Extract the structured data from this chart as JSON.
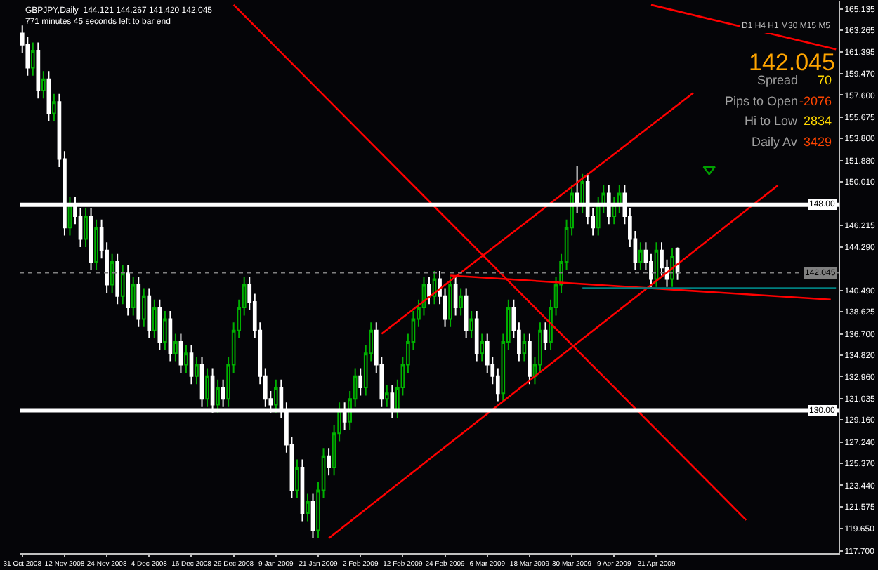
{
  "chart_data": {
    "type": "candlestick",
    "title": "GBPJPY,Daily  144.121 144.267 141.420 142.045",
    "subtitle": "771 minutes 45 seconds left to bar end",
    "categories": [
      "31 Oct 2008",
      null,
      null,
      null,
      null,
      null,
      null,
      null,
      "12 Nov 2008",
      null,
      null,
      null,
      null,
      null,
      null,
      null,
      "24 Nov 2008",
      null,
      null,
      null,
      null,
      null,
      null,
      null,
      "4 Dec 2008",
      null,
      null,
      null,
      null,
      null,
      null,
      null,
      "16 Dec 2008",
      null,
      null,
      null,
      null,
      null,
      null,
      null,
      "29 Dec 2008",
      null,
      null,
      null,
      null,
      null,
      null,
      null,
      "9 Jan 2009",
      null,
      null,
      null,
      null,
      null,
      null,
      null,
      "21 Jan 2009",
      null,
      null,
      null,
      null,
      null,
      null,
      null,
      "2 Feb 2009",
      null,
      null,
      null,
      null,
      null,
      null,
      null,
      "12 Feb 2009",
      null,
      null,
      null,
      null,
      null,
      null,
      null,
      "24 Feb 2009",
      null,
      null,
      null,
      null,
      null,
      null,
      null,
      "6 Mar 2009",
      null,
      null,
      null,
      null,
      null,
      null,
      null,
      "18 Mar 2009",
      null,
      null,
      null,
      null,
      null,
      null,
      null,
      "30 Mar 2009",
      null,
      null,
      null,
      null,
      null,
      null,
      null,
      "9 Apr 2009",
      null,
      null,
      null,
      null,
      null,
      null,
      null,
      "21 Apr 2009",
      null,
      null,
      null,
      null,
      null,
      null,
      null,
      null,
      null,
      null,
      null,
      null,
      null,
      null,
      null,
      null,
      null,
      null,
      null,
      null,
      null,
      null,
      null,
      null,
      null,
      null,
      null,
      null,
      null,
      null,
      null,
      null,
      null,
      null
    ],
    "ohlc": [
      [
        163,
        163.7,
        161.3,
        162
      ],
      [
        162,
        162.7,
        159.3,
        160
      ],
      [
        160,
        162.2,
        159.3,
        161.5
      ],
      [
        161.5,
        162.2,
        157.3,
        158
      ],
      [
        158,
        159.7,
        157.3,
        159
      ],
      [
        159,
        159.7,
        155.3,
        156
      ],
      [
        156,
        157.7,
        155.3,
        157
      ],
      [
        157,
        157.7,
        151.3,
        152
      ],
      [
        152,
        152.7,
        145.3,
        146
      ],
      [
        146,
        148.7,
        145.3,
        148
      ],
      [
        148,
        148.7,
        146.3,
        147
      ],
      [
        147,
        147.7,
        144.3,
        145
      ],
      [
        145,
        147.7,
        144.3,
        147
      ],
      [
        147,
        147.7,
        142.3,
        143
      ],
      [
        143,
        146.7,
        142.3,
        146
      ],
      [
        146,
        146.7,
        143.3,
        144
      ],
      [
        144,
        144.7,
        140.3,
        141
      ],
      [
        141,
        143.7,
        140.3,
        143
      ],
      [
        143,
        143.7,
        139.3,
        140
      ],
      [
        140,
        142.7,
        139.3,
        142
      ],
      [
        142,
        142.7,
        138.3,
        139
      ],
      [
        139,
        141.7,
        138.3,
        141
      ],
      [
        141,
        141.7,
        137.3,
        138
      ],
      [
        138,
        140.7,
        137.3,
        140
      ],
      [
        140,
        140.7,
        136.3,
        137
      ],
      [
        137,
        139.7,
        136.3,
        139
      ],
      [
        139,
        139.7,
        135.3,
        136
      ],
      [
        136,
        138.7,
        135.3,
        138
      ],
      [
        138,
        138.7,
        134.3,
        135
      ],
      [
        135,
        136.7,
        134.3,
        136
      ],
      [
        136,
        136.7,
        133.3,
        134
      ],
      [
        134,
        135.7,
        133.3,
        135
      ],
      [
        135,
        135.7,
        132.3,
        133
      ],
      [
        133,
        134.7,
        132.3,
        134
      ],
      [
        134,
        134.7,
        130.3,
        131
      ],
      [
        131,
        133.7,
        130.3,
        133
      ],
      [
        133,
        133.7,
        129.8,
        130.5
      ],
      [
        130.5,
        132.7,
        129.8,
        132
      ],
      [
        132,
        132.7,
        130.3,
        131
      ],
      [
        131,
        134.7,
        130.3,
        134
      ],
      [
        134,
        137.7,
        133.3,
        137
      ],
      [
        137,
        139.7,
        136.3,
        139
      ],
      [
        139,
        141.7,
        138.3,
        141
      ],
      [
        141,
        141.7,
        138.8,
        139.5
      ],
      [
        139.5,
        140.2,
        136.3,
        137
      ],
      [
        137,
        137.7,
        132.3,
        133
      ],
      [
        133,
        133.7,
        130.3,
        131
      ],
      [
        131,
        131.7,
        129.8,
        130.5
      ],
      [
        130.5,
        132.7,
        129.8,
        132
      ],
      [
        132,
        132.7,
        129.3,
        130
      ],
      [
        130,
        130.7,
        126.3,
        127
      ],
      [
        127,
        127.7,
        122.3,
        123
      ],
      [
        123,
        125.7,
        122.3,
        125
      ],
      [
        125,
        125.7,
        120.3,
        121
      ],
      [
        121,
        122.7,
        120.3,
        122
      ],
      [
        122,
        122.7,
        118.8,
        119.5
      ],
      [
        119.5,
        123.7,
        118.8,
        123
      ],
      [
        123,
        126.7,
        122.3,
        126
      ],
      [
        126,
        126.7,
        124.3,
        125
      ],
      [
        125,
        128.7,
        124.3,
        128
      ],
      [
        128,
        130.7,
        127.3,
        130
      ],
      [
        130,
        130.7,
        128.3,
        129
      ],
      [
        129,
        131.7,
        128.3,
        131
      ],
      [
        131,
        133.7,
        130.3,
        133
      ],
      [
        133,
        133.7,
        131.3,
        132
      ],
      [
        132,
        135.7,
        131.3,
        135
      ],
      [
        135,
        137.7,
        134.3,
        137
      ],
      [
        137,
        137.7,
        133.3,
        134
      ],
      [
        134,
        134.7,
        130.3,
        131
      ],
      [
        131,
        132.2,
        130.3,
        131.5
      ],
      [
        131.5,
        132.2,
        129.3,
        130
      ],
      [
        130,
        132.7,
        129.3,
        132
      ],
      [
        132,
        134.7,
        131.3,
        134
      ],
      [
        134,
        136.7,
        133.3,
        136
      ],
      [
        136,
        138.7,
        135.3,
        138
      ],
      [
        138,
        139.7,
        137.3,
        139
      ],
      [
        139,
        141.7,
        138.3,
        141
      ],
      [
        141,
        141.7,
        139.3,
        140
      ],
      [
        140,
        142.2,
        139.3,
        141.5
      ],
      [
        141.5,
        142.2,
        139.3,
        140
      ],
      [
        140,
        140.7,
        137.3,
        138
      ],
      [
        138,
        141.7,
        137.3,
        141
      ],
      [
        141,
        141.7,
        138.3,
        139
      ],
      [
        139,
        140.7,
        138.3,
        140
      ],
      [
        140,
        140.7,
        136.3,
        137
      ],
      [
        137,
        138.7,
        136.3,
        138
      ],
      [
        138,
        138.7,
        134.3,
        135
      ],
      [
        135,
        136.7,
        134.3,
        136
      ],
      [
        136,
        136.7,
        133.3,
        134
      ],
      [
        134,
        134.7,
        132.3,
        133
      ],
      [
        133,
        133.7,
        130.8,
        131.5
      ],
      [
        131.5,
        136.7,
        130.8,
        136
      ],
      [
        136,
        139.7,
        135.3,
        139
      ],
      [
        139,
        139.7,
        136.3,
        137
      ],
      [
        137,
        137.7,
        134.3,
        135
      ],
      [
        135,
        136.7,
        134.3,
        136
      ],
      [
        136,
        136.7,
        132.3,
        133
      ],
      [
        133,
        134.7,
        132.3,
        134
      ],
      [
        134,
        137.7,
        133.3,
        137
      ],
      [
        137,
        137.7,
        135.3,
        136
      ],
      [
        136,
        139.7,
        135.3,
        139
      ],
      [
        139,
        141.7,
        138.3,
        141
      ],
      [
        141,
        143.7,
        140.3,
        143
      ],
      [
        143,
        146.7,
        142.3,
        146
      ],
      [
        146,
        149.7,
        145.3,
        149
      ],
      [
        149,
        151.4,
        147.3,
        148
      ],
      [
        148,
        150.7,
        147.3,
        150
      ],
      [
        150,
        150.7,
        146.3,
        147
      ],
      [
        147,
        147.7,
        145.3,
        146
      ],
      [
        146,
        148.7,
        145.3,
        148
      ],
      [
        148,
        149.7,
        147.3,
        149
      ],
      [
        149,
        149.7,
        146.3,
        147
      ],
      [
        147,
        148.7,
        146.3,
        148
      ],
      [
        148,
        149.7,
        147.3,
        149
      ],
      [
        149,
        149.7,
        146.3,
        147
      ],
      [
        147,
        147.7,
        144.3,
        145
      ],
      [
        145,
        145.7,
        142.3,
        143
      ],
      [
        143,
        144.7,
        142.3,
        144
      ],
      [
        144,
        144.7,
        142.3,
        143
      ],
      [
        143,
        143.7,
        140.8,
        141.5
      ],
      [
        141.5,
        144.7,
        140.8,
        144
      ],
      [
        144,
        144.7,
        141.8,
        142.5
      ],
      [
        142.5,
        143.2,
        140.8,
        141.5
      ],
      [
        141.5,
        144.2,
        140.8,
        143.5
      ],
      [
        144.121,
        144.267,
        141.42,
        142.045
      ],
      null,
      null,
      null,
      null,
      null,
      null,
      null,
      null,
      null,
      null,
      null,
      null,
      null,
      null,
      null,
      null,
      null,
      null,
      null,
      null,
      null,
      null,
      null,
      null,
      null,
      null,
      null,
      null,
      null,
      null
    ],
    "colors": [
      "#ffffff",
      "#ffffff",
      "#00b000",
      "#ffffff",
      "#00b000",
      "#ffffff",
      "#00b000",
      "#ffffff",
      "#ffffff",
      "#00b000",
      "#ffffff",
      "#ffffff",
      "#00b000",
      "#ffffff",
      "#00b000",
      "#ffffff",
      "#ffffff",
      "#00b000",
      "#ffffff",
      "#00b000",
      "#ffffff",
      "#00b000",
      "#ffffff",
      "#00b000",
      "#ffffff",
      "#00b000",
      "#ffffff",
      "#00b000",
      "#ffffff",
      "#00b000",
      "#ffffff",
      "#00b000",
      "#ffffff",
      "#00b000",
      "#ffffff",
      "#00b000",
      "#ffffff",
      "#00b000",
      "#ffffff",
      "#00b000",
      "#00b000",
      "#00b000",
      "#00b000",
      "#ffffff",
      "#ffffff",
      "#ffffff",
      "#ffffff",
      "#ffffff",
      "#00b000",
      "#ffffff",
      "#ffffff",
      "#ffffff",
      "#00b000",
      "#ffffff",
      "#00b000",
      "#ffffff",
      "#00b000",
      "#00b000",
      "#ffffff",
      "#00b000",
      "#00b000",
      "#ffffff",
      "#00b000",
      "#00b000",
      "#ffffff",
      "#00b000",
      "#00b000",
      "#ffffff",
      "#ffffff",
      "#00b000",
      "#ffffff",
      "#00b000",
      "#00b000",
      "#00b000",
      "#00b000",
      "#00b000",
      "#00b000",
      "#ffffff",
      "#00b000",
      "#ffffff",
      "#ffffff",
      "#00b000",
      "#ffffff",
      "#00b000",
      "#ffffff",
      "#00b000",
      "#ffffff",
      "#00b000",
      "#ffffff",
      "#ffffff",
      "#ffffff",
      "#00b000",
      "#00b000",
      "#ffffff",
      "#ffffff",
      "#00b000",
      "#ffffff",
      "#00b000",
      "#00b000",
      "#ffffff",
      "#00b000",
      "#00b000",
      "#00b000",
      "#00b000",
      "#00b000",
      "#ffffff",
      "#00b000",
      "#ffffff",
      "#ffffff",
      "#00b000",
      "#00b000",
      "#ffffff",
      "#00b000",
      "#00b000",
      "#ffffff",
      "#ffffff",
      "#ffffff",
      "#00b000",
      "#ffffff",
      "#ffffff",
      "#00b000",
      "#ffffff",
      "#ffffff",
      "#00b000",
      "#ffffff",
      null,
      null,
      null,
      null,
      null,
      null,
      null,
      null,
      null,
      null,
      null,
      null,
      null,
      null,
      null,
      null,
      null,
      null,
      null,
      null,
      null,
      null,
      null,
      null,
      null,
      null,
      null,
      null,
      null,
      null
    ],
    "series": [
      {
        "type": "line",
        "color": "#ff0000",
        "values": [
          null,
          null,
          null,
          null,
          null,
          null,
          null,
          null,
          null,
          null,
          null,
          null,
          null,
          null,
          null,
          null,
          null,
          null,
          null,
          null,
          null,
          null,
          null,
          null,
          null,
          null,
          null,
          null,
          null,
          null,
          null,
          null,
          null,
          null,
          null,
          null,
          null,
          null,
          null,
          null,
          165.5,
          null,
          null,
          null,
          null,
          null,
          null,
          null,
          null,
          null,
          null,
          null,
          null,
          null,
          null,
          null,
          null,
          null,
          null,
          null,
          null,
          null,
          null,
          null,
          null,
          null,
          null,
          null,
          null,
          null,
          null,
          null,
          null,
          null,
          null,
          null,
          null,
          null,
          null,
          null,
          null,
          null,
          null,
          null,
          null,
          null,
          null,
          null,
          null,
          null,
          null,
          null,
          null,
          null,
          null,
          null,
          null,
          null,
          null,
          null,
          null,
          null,
          null,
          null,
          null,
          null,
          null,
          null,
          null,
          null,
          null,
          null,
          null,
          null,
          null,
          null,
          null,
          null,
          null,
          null,
          null,
          null,
          null,
          null,
          null,
          null,
          null,
          null,
          null,
          null,
          null,
          null,
          null,
          null,
          null,
          null,
          null,
          120.4,
          null,
          null,
          null,
          null,
          null,
          null,
          null,
          null,
          null,
          null,
          null,
          null,
          null,
          null,
          null,
          null,
          null
        ]
      },
      {
        "type": "line",
        "color": "#ff0000",
        "values": [
          null,
          null,
          null,
          null,
          null,
          null,
          null,
          null,
          null,
          null,
          null,
          null,
          null,
          null,
          null,
          null,
          null,
          null,
          null,
          null,
          null,
          null,
          null,
          null,
          null,
          null,
          null,
          null,
          null,
          null,
          null,
          null,
          null,
          null,
          null,
          null,
          null,
          null,
          null,
          null,
          null,
          null,
          null,
          null,
          null,
          null,
          null,
          null,
          null,
          null,
          null,
          null,
          null,
          null,
          null,
          null,
          null,
          null,
          118.8,
          null,
          null,
          null,
          null,
          null,
          null,
          null,
          null,
          null,
          null,
          null,
          null,
          null,
          null,
          null,
          null,
          null,
          null,
          null,
          null,
          null,
          null,
          null,
          null,
          null,
          null,
          null,
          null,
          null,
          null,
          null,
          null,
          null,
          null,
          null,
          null,
          null,
          null,
          null,
          null,
          null,
          null,
          null,
          null,
          null,
          null,
          null,
          null,
          null,
          null,
          null,
          null,
          null,
          null,
          null,
          null,
          null,
          null,
          null,
          null,
          null,
          null,
          null,
          null,
          null,
          null,
          null,
          null,
          null,
          null,
          null,
          null,
          null,
          null,
          null,
          null,
          null,
          null,
          null,
          null,
          null,
          null,
          null,
          null,
          149.7,
          null,
          null,
          null,
          null,
          null,
          null,
          null,
          null,
          null,
          null,
          null
        ]
      },
      {
        "type": "line",
        "color": "#ff0000",
        "values": [
          null,
          null,
          null,
          null,
          null,
          null,
          null,
          null,
          null,
          null,
          null,
          null,
          null,
          null,
          null,
          null,
          null,
          null,
          null,
          null,
          null,
          null,
          null,
          null,
          null,
          null,
          null,
          null,
          null,
          null,
          null,
          null,
          null,
          null,
          null,
          null,
          null,
          null,
          null,
          null,
          null,
          null,
          null,
          null,
          null,
          null,
          null,
          null,
          null,
          null,
          null,
          null,
          null,
          null,
          null,
          null,
          null,
          null,
          null,
          null,
          null,
          null,
          null,
          null,
          null,
          null,
          null,
          null,
          136.7,
          null,
          null,
          null,
          null,
          null,
          null,
          null,
          null,
          null,
          null,
          null,
          null,
          null,
          null,
          null,
          null,
          null,
          null,
          null,
          null,
          null,
          null,
          null,
          null,
          null,
          null,
          null,
          null,
          null,
          null,
          null,
          null,
          null,
          null,
          null,
          null,
          null,
          null,
          null,
          null,
          null,
          null,
          null,
          null,
          null,
          null,
          null,
          null,
          null,
          null,
          null,
          null,
          null,
          null,
          null,
          null,
          null,
          null,
          157.8,
          null,
          null,
          null,
          null,
          null,
          null,
          null,
          null,
          null,
          null,
          null,
          null,
          null,
          null,
          null,
          null,
          null,
          null,
          null,
          null,
          null,
          null,
          null,
          null,
          null,
          null,
          null
        ]
      },
      {
        "type": "line",
        "color": "#ff0000",
        "values": [
          null,
          null,
          null,
          null,
          null,
          null,
          null,
          null,
          null,
          null,
          null,
          null,
          null,
          null,
          null,
          null,
          null,
          null,
          null,
          null,
          null,
          null,
          null,
          null,
          null,
          null,
          null,
          null,
          null,
          null,
          null,
          null,
          null,
          null,
          null,
          null,
          null,
          null,
          null,
          null,
          null,
          null,
          null,
          null,
          null,
          null,
          null,
          null,
          null,
          null,
          null,
          null,
          null,
          null,
          null,
          null,
          null,
          null,
          null,
          null,
          null,
          null,
          null,
          null,
          null,
          null,
          null,
          null,
          null,
          null,
          null,
          null,
          null,
          null,
          null,
          null,
          null,
          null,
          null,
          null,
          null,
          null,
          null,
          null,
          null,
          null,
          null,
          null,
          null,
          null,
          null,
          null,
          null,
          null,
          null,
          null,
          null,
          null,
          null,
          null,
          null,
          null,
          null,
          null,
          null,
          null,
          null,
          null,
          null,
          null,
          null,
          null,
          null,
          null,
          null,
          null,
          null,
          null,
          null,
          165.5,
          null,
          null,
          null,
          null,
          null,
          null,
          null,
          null,
          null,
          null,
          null,
          null,
          null,
          null,
          null,
          null,
          null,
          null,
          null,
          null,
          null,
          null,
          null,
          null,
          null,
          null,
          null,
          null,
          null,
          null,
          null,
          null,
          null,
          null,
          161.6
        ]
      },
      {
        "type": "line",
        "color": "#ff0000",
        "values": [
          null,
          null,
          null,
          null,
          null,
          null,
          null,
          null,
          null,
          null,
          null,
          null,
          null,
          null,
          null,
          null,
          null,
          null,
          null,
          null,
          null,
          null,
          null,
          null,
          null,
          null,
          null,
          null,
          null,
          null,
          null,
          null,
          null,
          null,
          null,
          null,
          null,
          null,
          null,
          null,
          null,
          null,
          null,
          null,
          null,
          null,
          null,
          null,
          null,
          null,
          null,
          null,
          null,
          null,
          null,
          null,
          null,
          null,
          null,
          null,
          null,
          null,
          null,
          null,
          null,
          null,
          null,
          null,
          null,
          null,
          null,
          null,
          null,
          null,
          null,
          null,
          null,
          null,
          null,
          null,
          null,
          141.8,
          null,
          null,
          null,
          null,
          null,
          null,
          null,
          null,
          null,
          null,
          null,
          null,
          null,
          null,
          null,
          null,
          null,
          null,
          null,
          null,
          null,
          null,
          null,
          null,
          null,
          null,
          null,
          null,
          null,
          null,
          null,
          null,
          null,
          null,
          null,
          null,
          null,
          null,
          null,
          null,
          null,
          null,
          null,
          null,
          null,
          null,
          null,
          null,
          null,
          null,
          null,
          null,
          null,
          null,
          null,
          null,
          null,
          null,
          null,
          null,
          null,
          null,
          null,
          null,
          null,
          null,
          null,
          null,
          null,
          null,
          null,
          139.7,
          null
        ]
      },
      {
        "type": "line",
        "color": "#008080",
        "values": [
          null,
          null,
          null,
          null,
          null,
          null,
          null,
          null,
          null,
          null,
          null,
          null,
          null,
          null,
          null,
          null,
          null,
          null,
          null,
          null,
          null,
          null,
          null,
          null,
          null,
          null,
          null,
          null,
          null,
          null,
          null,
          null,
          null,
          null,
          null,
          null,
          null,
          null,
          null,
          null,
          null,
          null,
          null,
          null,
          null,
          null,
          null,
          null,
          null,
          null,
          null,
          null,
          null,
          null,
          null,
          null,
          null,
          null,
          null,
          null,
          null,
          null,
          null,
          null,
          null,
          null,
          null,
          null,
          null,
          null,
          null,
          null,
          null,
          null,
          null,
          null,
          null,
          null,
          null,
          null,
          null,
          null,
          null,
          null,
          null,
          null,
          null,
          null,
          null,
          null,
          null,
          null,
          null,
          null,
          null,
          null,
          null,
          null,
          null,
          null,
          null,
          null,
          null,
          null,
          null,
          null,
          140.7,
          null,
          null,
          null,
          null,
          null,
          null,
          null,
          null,
          null,
          null,
          null,
          null,
          null,
          null,
          null,
          null,
          null,
          null,
          null,
          null,
          null,
          null,
          null,
          null,
          null,
          null,
          null,
          null,
          null,
          null,
          null,
          null,
          null,
          null,
          null,
          null,
          null,
          null,
          null,
          null,
          null,
          null,
          null,
          null,
          null,
          null,
          null,
          140.7
        ]
      },
      {
        "type": "scatter",
        "color": "#00a000",
        "marker": "triangle",
        "values": [
          null,
          null,
          null,
          null,
          null,
          null,
          null,
          null,
          null,
          null,
          null,
          null,
          null,
          null,
          null,
          null,
          null,
          null,
          null,
          null,
          null,
          null,
          null,
          null,
          null,
          null,
          null,
          null,
          null,
          null,
          null,
          null,
          null,
          null,
          null,
          null,
          null,
          null,
          null,
          null,
          null,
          null,
          null,
          null,
          null,
          null,
          null,
          null,
          null,
          null,
          null,
          null,
          null,
          null,
          null,
          null,
          null,
          null,
          null,
          null,
          null,
          null,
          null,
          null,
          null,
          null,
          null,
          null,
          null,
          null,
          null,
          null,
          null,
          null,
          null,
          null,
          null,
          null,
          null,
          null,
          null,
          null,
          null,
          null,
          null,
          null,
          null,
          null,
          null,
          null,
          null,
          null,
          null,
          null,
          null,
          null,
          null,
          null,
          null,
          null,
          null,
          null,
          null,
          null,
          null,
          null,
          null,
          null,
          null,
          null,
          null,
          null,
          null,
          null,
          null,
          null,
          null,
          null,
          null,
          null,
          null,
          null,
          null,
          null,
          null,
          null,
          null,
          null,
          null,
          null,
          151.1,
          null,
          null,
          null,
          null,
          null,
          null,
          null,
          null,
          null,
          null,
          null,
          null,
          null,
          null,
          null,
          null,
          null,
          null,
          null,
          null,
          null,
          null,
          null,
          null
        ]
      }
    ],
    "ylim": [
      117.5,
      165.8
    ],
    "yticks": [
      {
        "value": 117.7,
        "label": "117.700"
      },
      {
        "value": 119.65,
        "label": "119.650"
      },
      {
        "value": 121.575,
        "label": "121.575"
      },
      {
        "value": 123.44,
        "label": "123.440"
      },
      {
        "value": 125.37,
        "label": "125.370"
      },
      {
        "value": 127.24,
        "label": "127.240"
      },
      {
        "value": 129.16,
        "label": "129.160"
      },
      {
        "value": 131.035,
        "label": "131.035"
      },
      {
        "value": 132.96,
        "label": "132.960"
      },
      {
        "value": 134.82,
        "label": "134.820"
      },
      {
        "value": 136.7,
        "label": "136.700"
      },
      {
        "value": 138.625,
        "label": "138.625"
      },
      {
        "value": 140.49,
        "label": "140.490"
      },
      {
        "value": 144.29,
        "label": "144.290"
      },
      {
        "value": 146.215,
        "label": "146.215"
      },
      {
        "value": 150.01,
        "label": "150.010"
      },
      {
        "value": 151.88,
        "label": "151.880"
      },
      {
        "value": 153.8,
        "label": "153.800"
      },
      {
        "value": 155.675,
        "label": "155.675"
      },
      {
        "value": 157.6,
        "label": "157.600"
      },
      {
        "value": 159.47,
        "label": "159.470"
      },
      {
        "value": 161.395,
        "label": "161.395"
      },
      {
        "value": 163.265,
        "label": "163.265"
      },
      {
        "value": 165.135,
        "label": "165.135"
      }
    ],
    "ref_lines": [
      {
        "axis": "y",
        "value": 148,
        "label": "148.00",
        "color": "#ffffff"
      },
      {
        "axis": "y",
        "value": 130,
        "label": "130.00",
        "color": "#ffffff"
      },
      {
        "axis": "y",
        "value": 142.045,
        "label": "142.045",
        "color": "#808080",
        "line_style": "dotted"
      }
    ],
    "annotations": [
      "D1 H4 H1 M30 M15 M5",
      "142.045",
      "Spread",
      "70",
      "Pips to Open",
      "-2076",
      "Hi to Low",
      "2834",
      "Daily Av",
      "3429"
    ]
  }
}
